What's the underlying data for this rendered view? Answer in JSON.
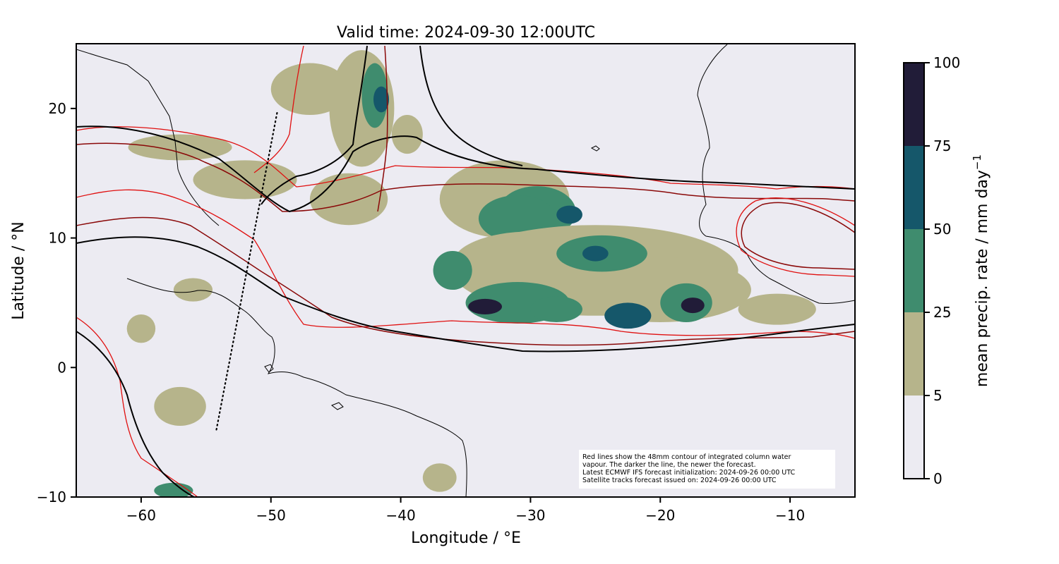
{
  "figure": {
    "title": "Valid time: 2024-09-30 12:00UTC",
    "xlabel": "Longitude / °E",
    "ylabel": "Latitude / °N",
    "colorbar_label": "mean precip. rate / mm day",
    "colorbar_label_sup": "−1",
    "note_lines": [
      "Red lines show the 48mm contour of integrated column water",
      "vapour. The darker the line, the newer the forecast.",
      "Latest ECMWF IFS forecast initialization: 2024-09-26 00:00 UTC",
      "Satellite tracks forecast issued on: 2024-09-26 00:00 UTC"
    ]
  },
  "chart_data": {
    "type": "map",
    "xlim": [
      -65,
      -5
    ],
    "ylim": [
      -10,
      25
    ],
    "xticks": [
      -60,
      -50,
      -40,
      -30,
      -20,
      -10
    ],
    "xtick_labels": [
      "−60",
      "−50",
      "−40",
      "−30",
      "−20",
      "−10"
    ],
    "yticks": [
      -10,
      0,
      10,
      20
    ],
    "ytick_labels": [
      "−10",
      "0",
      "10",
      "20"
    ],
    "colorbar": {
      "levels": [
        0,
        5,
        25,
        50,
        75,
        100
      ],
      "level_labels": [
        "0",
        "5",
        "25",
        "50",
        "75",
        "100"
      ],
      "colors": [
        "#ecebf2",
        "#b6b48b",
        "#3f8c6e",
        "#15576a",
        "#211c38"
      ]
    },
    "satellite_track": [
      [
        -54.2,
        -4.8
      ],
      [
        -49.5,
        19.8
      ]
    ],
    "precip_blobs": [
      {
        "lon": -32,
        "lat": 13,
        "rx": 5,
        "ry": 3,
        "level": 1
      },
      {
        "lon": -29.5,
        "lat": 12,
        "rx": 3,
        "ry": 2,
        "level": 2
      },
      {
        "lon": -31,
        "lat": 11.5,
        "rx": 3,
        "ry": 1.8,
        "level": 2
      },
      {
        "lon": -27,
        "lat": 11.8,
        "rx": 1,
        "ry": 0.7,
        "level": 3
      },
      {
        "lon": -25,
        "lat": 7.5,
        "rx": 11,
        "ry": 3.5,
        "level": 1
      },
      {
        "lon": -30,
        "lat": 8,
        "rx": 6,
        "ry": 2.5,
        "level": 1
      },
      {
        "lon": -20,
        "lat": 6,
        "rx": 7,
        "ry": 2.5,
        "level": 1
      },
      {
        "lon": -31,
        "lat": 5,
        "rx": 4,
        "ry": 1.6,
        "level": 2
      },
      {
        "lon": -33.5,
        "lat": 4.7,
        "rx": 1.3,
        "ry": 0.6,
        "level": 4
      },
      {
        "lon": -24.5,
        "lat": 8.8,
        "rx": 3.5,
        "ry": 1.4,
        "level": 2
      },
      {
        "lon": -25,
        "lat": 8.8,
        "rx": 1,
        "ry": 0.6,
        "level": 3
      },
      {
        "lon": -22.5,
        "lat": 4,
        "rx": 1.8,
        "ry": 1,
        "level": 3
      },
      {
        "lon": -18,
        "lat": 5,
        "rx": 2,
        "ry": 1.5,
        "level": 2
      },
      {
        "lon": -17.5,
        "lat": 4.8,
        "rx": 0.9,
        "ry": 0.6,
        "level": 4
      },
      {
        "lon": -28,
        "lat": 4.5,
        "rx": 2,
        "ry": 1,
        "level": 2
      },
      {
        "lon": -36,
        "lat": 7.5,
        "rx": 1.5,
        "ry": 1.5,
        "level": 2
      },
      {
        "lon": -11,
        "lat": 4.5,
        "rx": 3,
        "ry": 1.2,
        "level": 1
      },
      {
        "lon": -43,
        "lat": 20,
        "rx": 2.5,
        "ry": 4.5,
        "level": 1
      },
      {
        "lon": -42,
        "lat": 21,
        "rx": 1,
        "ry": 2.5,
        "level": 2
      },
      {
        "lon": -41.5,
        "lat": 20.7,
        "rx": 0.6,
        "ry": 1,
        "level": 3
      },
      {
        "lon": -47,
        "lat": 21.5,
        "rx": 3,
        "ry": 2,
        "level": 1
      },
      {
        "lon": -44,
        "lat": 13,
        "rx": 3,
        "ry": 2,
        "level": 1
      },
      {
        "lon": -52,
        "lat": 14.5,
        "rx": 4,
        "ry": 1.5,
        "level": 1
      },
      {
        "lon": -57,
        "lat": 17,
        "rx": 4,
        "ry": 1,
        "level": 1
      },
      {
        "lon": -56,
        "lat": 6,
        "rx": 1.5,
        "ry": 0.9,
        "level": 1
      },
      {
        "lon": -60,
        "lat": 3,
        "rx": 1.1,
        "ry": 1.1,
        "level": 1
      },
      {
        "lon": -57,
        "lat": -3,
        "rx": 2,
        "ry": 1.5,
        "level": 1
      },
      {
        "lon": -57.5,
        "lat": -9.5,
        "rx": 1.5,
        "ry": 0.6,
        "level": 2
      },
      {
        "lon": -37,
        "lat": -8.5,
        "rx": 1.3,
        "ry": 1.1,
        "level": 1
      },
      {
        "lon": -39.5,
        "lat": 18,
        "rx": 1.2,
        "ry": 1.5,
        "level": 1
      }
    ]
  }
}
